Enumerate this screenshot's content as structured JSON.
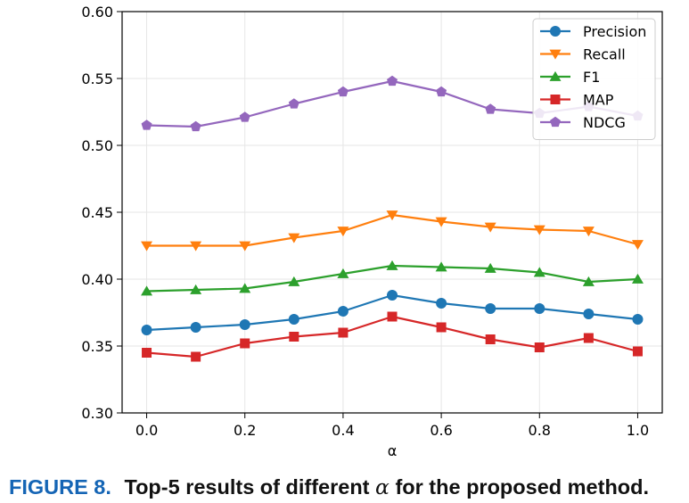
{
  "chart_data": {
    "type": "line",
    "xlabel": "α",
    "ylabel": "",
    "xlim": [
      -0.05,
      1.05
    ],
    "ylim": [
      0.3,
      0.6
    ],
    "x": [
      0.0,
      0.1,
      0.2,
      0.3,
      0.4,
      0.5,
      0.6,
      0.7,
      0.8,
      0.9,
      1.0
    ],
    "xticks": [
      "0.0",
      "0.2",
      "0.4",
      "0.6",
      "0.8",
      "1.0"
    ],
    "xtick_values": [
      0.0,
      0.2,
      0.4,
      0.6,
      0.8,
      1.0
    ],
    "yticks": [
      "0.30",
      "0.35",
      "0.40",
      "0.45",
      "0.50",
      "0.55",
      "0.60"
    ],
    "ytick_values": [
      0.3,
      0.35,
      0.4,
      0.45,
      0.5,
      0.55,
      0.6
    ],
    "grid": true,
    "legend_position": "top-right",
    "series": [
      {
        "name": "Precision",
        "color": "#1f77b4",
        "marker": "circle",
        "values": [
          0.362,
          0.364,
          0.366,
          0.37,
          0.376,
          0.388,
          0.382,
          0.378,
          0.378,
          0.374,
          0.37
        ]
      },
      {
        "name": "Recall",
        "color": "#ff7f0e",
        "marker": "triangle-down",
        "values": [
          0.425,
          0.425,
          0.425,
          0.431,
          0.436,
          0.448,
          0.443,
          0.439,
          0.437,
          0.436,
          0.426
        ]
      },
      {
        "name": "F1",
        "color": "#2ca02c",
        "marker": "triangle-up",
        "values": [
          0.391,
          0.392,
          0.393,
          0.398,
          0.404,
          0.41,
          0.409,
          0.408,
          0.405,
          0.398,
          0.4
        ]
      },
      {
        "name": "MAP",
        "color": "#d62728",
        "marker": "square",
        "values": [
          0.345,
          0.342,
          0.352,
          0.357,
          0.36,
          0.372,
          0.364,
          0.355,
          0.349,
          0.356,
          0.346
        ]
      },
      {
        "name": "NDCG",
        "color": "#9467bd",
        "marker": "pentagon",
        "values": [
          0.515,
          0.514,
          0.521,
          0.531,
          0.54,
          0.548,
          0.54,
          0.527,
          0.524,
          0.529,
          0.522
        ]
      }
    ]
  },
  "caption": {
    "label": "FIGURE 8.",
    "text_before": "Top-5 results of different",
    "symbol": "α",
    "text_after": "for the proposed method."
  }
}
